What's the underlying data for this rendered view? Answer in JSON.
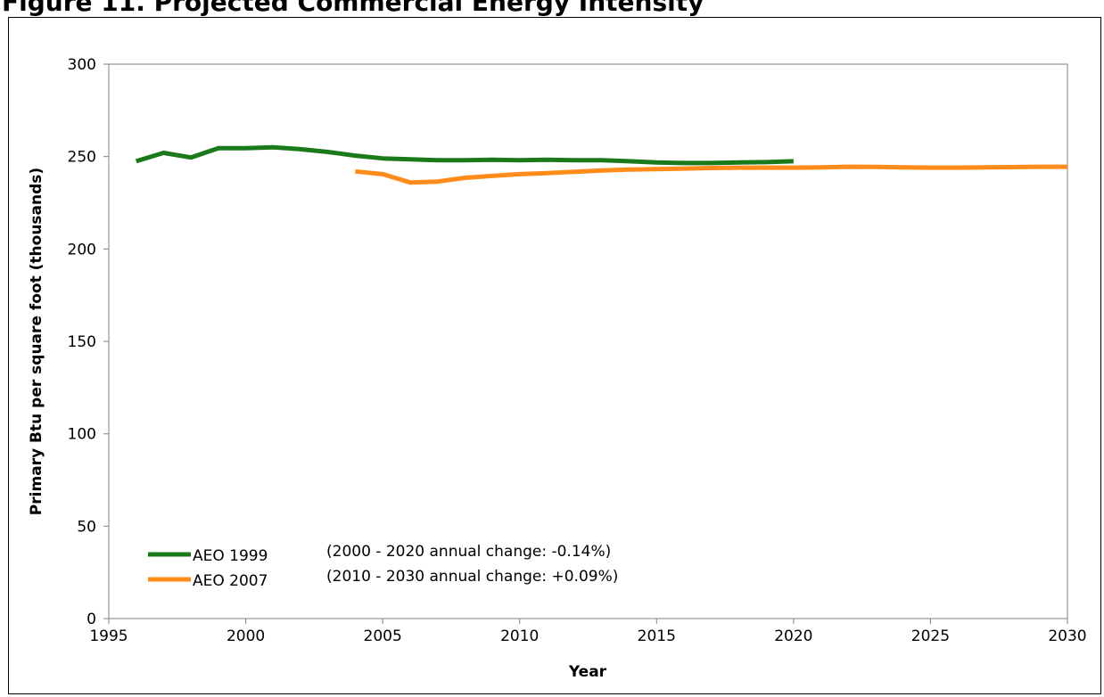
{
  "title": "Figure 11.  Projected Commercial Energy Intensity",
  "chart_data": {
    "type": "line",
    "xlabel": "Year",
    "ylabel": "Primary Btu per square foot (thousands)",
    "xlim": [
      1995,
      2030
    ],
    "ylim": [
      0,
      300
    ],
    "x_ticks": [
      1995,
      2000,
      2005,
      2010,
      2015,
      2020,
      2025,
      2030
    ],
    "y_ticks": [
      0,
      50,
      100,
      150,
      200,
      250,
      300
    ],
    "grid": false,
    "legend_position": "bottom-left",
    "series": [
      {
        "name": "AEO 1999",
        "color": "#1a7a1a",
        "annotation": "(2000 - 2020 annual change: -0.14%)",
        "x": [
          1996,
          1997,
          1998,
          1999,
          2000,
          2001,
          2002,
          2003,
          2004,
          2005,
          2006,
          2007,
          2008,
          2009,
          2010,
          2011,
          2012,
          2013,
          2014,
          2015,
          2016,
          2017,
          2018,
          2019,
          2020
        ],
        "y": [
          247.5,
          252,
          249.5,
          254.5,
          254.5,
          255,
          254,
          252.5,
          250.5,
          249,
          248.5,
          248,
          248,
          248.3,
          248,
          248.3,
          248,
          248,
          247.5,
          246.8,
          246.5,
          246.5,
          246.8,
          247,
          247.5
        ]
      },
      {
        "name": "AEO 2007",
        "color": "#ff8c1a",
        "annotation": "(2010 - 2030 annual change: +0.09%)",
        "x": [
          2004,
          2005,
          2006,
          2007,
          2008,
          2009,
          2010,
          2011,
          2012,
          2013,
          2014,
          2015,
          2016,
          2017,
          2018,
          2019,
          2020,
          2021,
          2022,
          2023,
          2024,
          2025,
          2026,
          2027,
          2028,
          2029,
          2030
        ],
        "y": [
          242,
          240.5,
          236,
          236.5,
          238.5,
          239.5,
          240.5,
          241,
          241.8,
          242.5,
          243,
          243.2,
          243.5,
          243.8,
          244,
          244,
          244,
          244.2,
          244.5,
          244.4,
          244.2,
          244,
          244,
          244.2,
          244.3,
          244.5,
          244.5
        ]
      }
    ]
  }
}
